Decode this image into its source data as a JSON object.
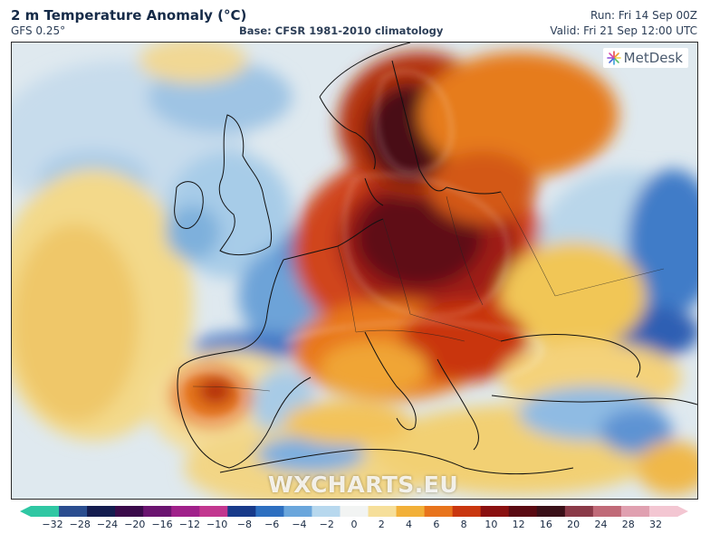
{
  "header": {
    "title": "2 m Temperature Anomaly (°C)",
    "model": "GFS 0.25°",
    "base": "Base: CFSR 1981-2010 climatology",
    "run": "Run: Fri 14 Sep 00Z",
    "valid": "Valid: Fri 21 Sep 12:00 UTC"
  },
  "map": {
    "region": "Europe and North Africa",
    "logo_text": "MetDesk",
    "watermark": "WXCHARTS.EU",
    "coastline_color": "#111111",
    "contour_color": "#ffffff"
  },
  "colorbar": {
    "labels": [
      "−32",
      "−28",
      "−24",
      "−20",
      "−16",
      "−12",
      "−10",
      "−8",
      "−6",
      "−4",
      "−2",
      "0",
      "2",
      "4",
      "6",
      "8",
      "10",
      "12",
      "16",
      "20",
      "24",
      "28",
      "32"
    ],
    "colors": [
      "#2fc7a3",
      "#2a4d8f",
      "#141c4f",
      "#3a0a4a",
      "#6b1470",
      "#a0208a",
      "#c2368f",
      "#183a8a",
      "#2d6fc0",
      "#6aa6dc",
      "#b7d8ee",
      "#f2f4f3",
      "#f6df9a",
      "#f2b038",
      "#e8741c",
      "#c9360f",
      "#8a1010",
      "#5a0a12",
      "#3a1018",
      "#8a3a48",
      "#c06a78",
      "#e0a0b0",
      "#f3c6d2"
    ]
  }
}
